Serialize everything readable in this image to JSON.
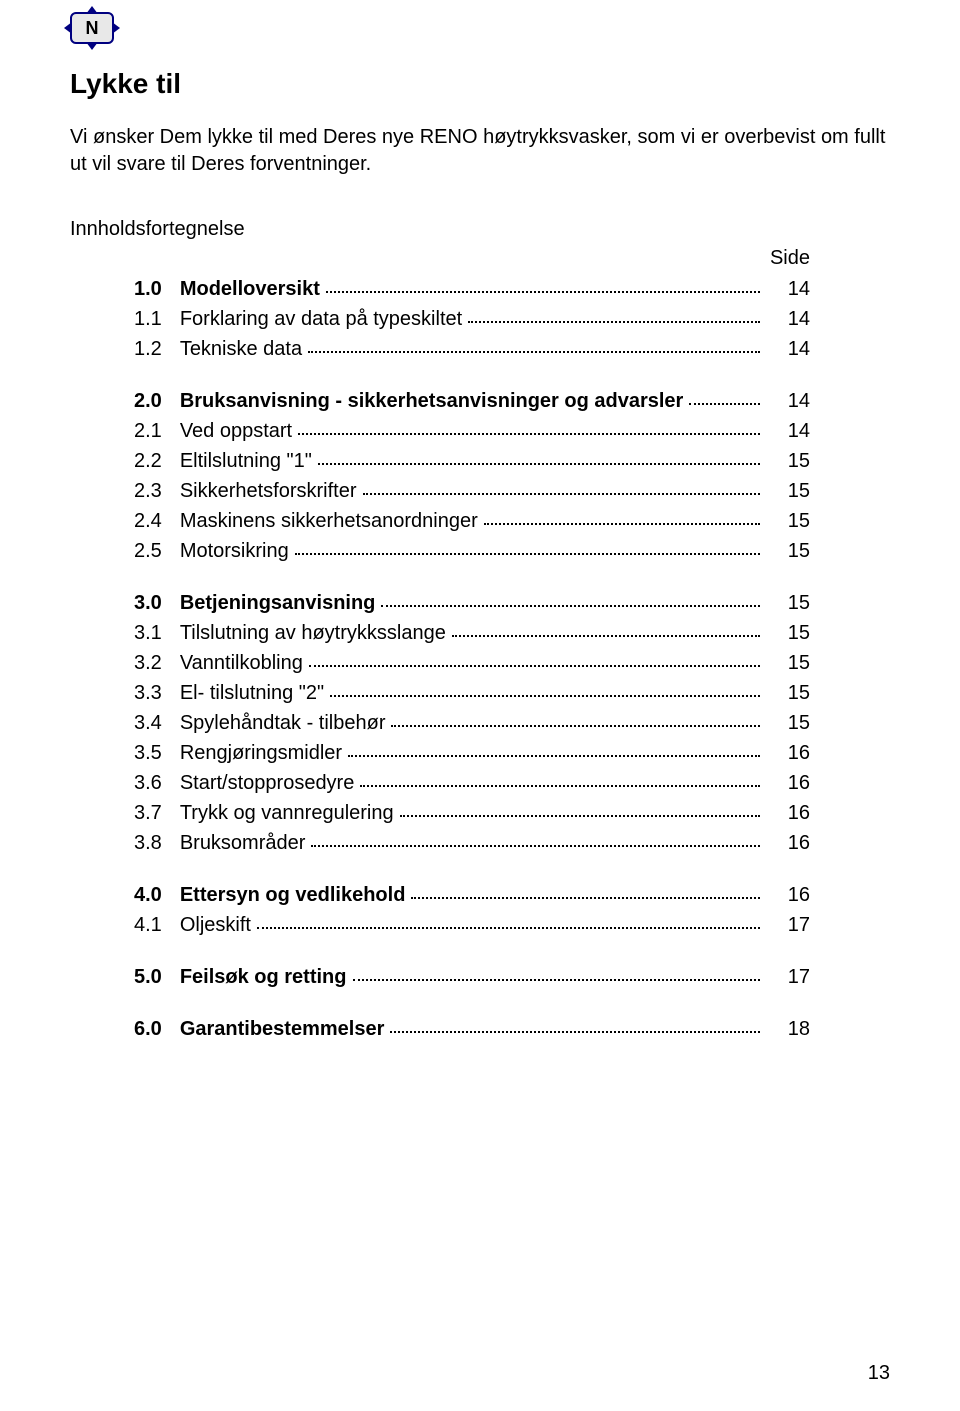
{
  "badge_letter": "N",
  "title": "Lykke til",
  "intro": "Vi ønsker Dem lykke til med Deres nye RENO høytrykksvasker, som vi er overbevist om fullt ut vil svare til Deres forventninger.",
  "toc_heading": "Innholdsfortegnelse",
  "side_label": "Side",
  "page_number": "13",
  "toc": [
    {
      "entries": [
        {
          "num": "1.0",
          "label": "Modelloversikt",
          "page": "14",
          "bold": true
        },
        {
          "num": "1.1",
          "label": "Forklaring av data på typeskiltet",
          "page": "14",
          "bold": false
        },
        {
          "num": "1.2",
          "label": "Tekniske data",
          "page": "14",
          "bold": false
        }
      ]
    },
    {
      "entries": [
        {
          "num": "2.0",
          "label": "Bruksanvisning - sikkerhetsanvisninger og advarsler",
          "page": "14",
          "bold": true
        },
        {
          "num": "2.1",
          "label": "Ved oppstart",
          "page": "14",
          "bold": false
        },
        {
          "num": "2.2",
          "label": "Eltilslutning \"1\"",
          "page": "15",
          "bold": false
        },
        {
          "num": "2.3",
          "label": "Sikkerhetsforskrifter",
          "page": "15",
          "bold": false
        },
        {
          "num": "2.4",
          "label": "Maskinens sikkerhetsanordninger",
          "page": "15",
          "bold": false
        },
        {
          "num": "2.5",
          "label": "Motorsikring",
          "page": "15",
          "bold": false
        }
      ]
    },
    {
      "entries": [
        {
          "num": "3.0",
          "label": "Betjeningsanvisning",
          "page": "15",
          "bold": true
        },
        {
          "num": "3.1",
          "label": "Tilslutning av høytrykksslange",
          "page": "15",
          "bold": false
        },
        {
          "num": "3.2",
          "label": "Vanntilkobling",
          "page": "15",
          "bold": false
        },
        {
          "num": "3.3",
          "label": "El- tilslutning \"2\"",
          "page": "15",
          "bold": false
        },
        {
          "num": "3.4",
          "label": "Spylehåndtak - tilbehør",
          "page": "15",
          "bold": false
        },
        {
          "num": "3.5",
          "label": "Rengjøringsmidler",
          "page": "16",
          "bold": false
        },
        {
          "num": "3.6",
          "label": "Start/stopprosedyre",
          "page": "16",
          "bold": false
        },
        {
          "num": "3.7",
          "label": "Trykk og vannregulering",
          "page": "16",
          "bold": false
        },
        {
          "num": "3.8",
          "label": "Bruksområder",
          "page": "16",
          "bold": false
        }
      ]
    },
    {
      "entries": [
        {
          "num": "4.0",
          "label": "Ettersyn og vedlikehold",
          "page": "16",
          "bold": true
        },
        {
          "num": "4.1",
          "label": "Oljeskift",
          "page": "17",
          "bold": false
        }
      ]
    },
    {
      "entries": [
        {
          "num": "5.0",
          "label": "Feilsøk og retting",
          "page": "17",
          "bold": true
        }
      ]
    },
    {
      "entries": [
        {
          "num": "6.0",
          "label": "Garantibestemmelser",
          "page": "18",
          "bold": true
        }
      ]
    }
  ]
}
